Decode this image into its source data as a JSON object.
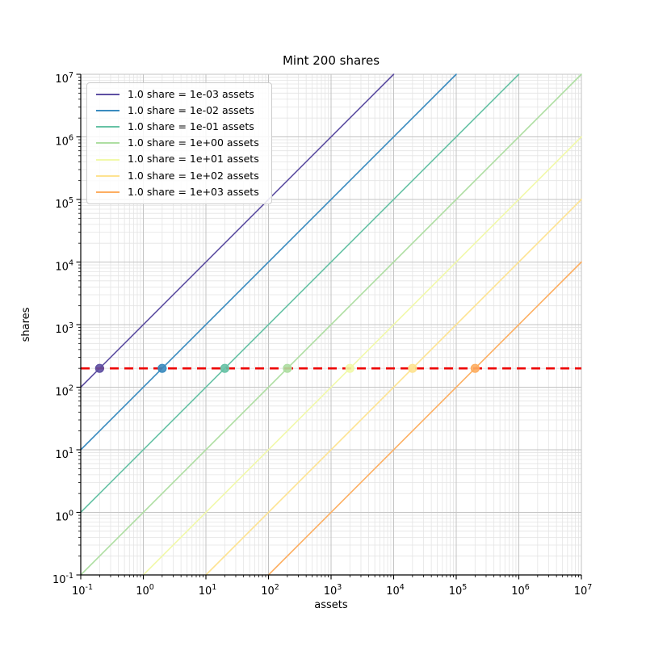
{
  "chart_data": {
    "type": "line",
    "title": "Mint 200 shares",
    "xlabel": "assets",
    "ylabel": "shares",
    "xscale": "log",
    "yscale": "log",
    "xlim": [
      0.1,
      10000000
    ],
    "ylim": [
      0.1,
      10000000
    ],
    "x_tick_exponents": [
      -1,
      0,
      1,
      2,
      3,
      4,
      5,
      6,
      7
    ],
    "y_tick_exponents": [
      -1,
      0,
      1,
      2,
      3,
      4,
      5,
      6,
      7
    ],
    "grid": "both",
    "legend_position": "upper left",
    "series": [
      {
        "label": "1.0 share = 1e-03 assets",
        "rate": 0.001,
        "color": "#5e4fa2",
        "marker_at": {
          "x": 0.2,
          "y": 200
        }
      },
      {
        "label": "1.0 share = 1e-02 assets",
        "rate": 0.01,
        "color": "#3a8bbf",
        "marker_at": {
          "x": 2,
          "y": 200
        }
      },
      {
        "label": "1.0 share = 1e-01 assets",
        "rate": 0.1,
        "color": "#66c2a5",
        "marker_at": {
          "x": 20,
          "y": 200
        }
      },
      {
        "label": "1.0 share = 1e+00 assets",
        "rate": 1,
        "color": "#aedea2",
        "marker_at": {
          "x": 200,
          "y": 200
        }
      },
      {
        "label": "1.0 share = 1e+01 assets",
        "rate": 10,
        "color": "#f1f9a9",
        "marker_at": {
          "x": 2000,
          "y": 200
        }
      },
      {
        "label": "1.0 share = 1e+02 assets",
        "rate": 100,
        "color": "#fee391",
        "marker_at": {
          "x": 20000,
          "y": 200
        }
      },
      {
        "label": "1.0 share = 1e+03 assets",
        "rate": 1000,
        "color": "#fdae61",
        "marker_at": {
          "x": 200000,
          "y": 200
        }
      }
    ],
    "reference_line": {
      "y": 200,
      "color": "#ee0000",
      "style": "dashed"
    },
    "colors": {
      "major_grid": "#c3c3c3",
      "minor_grid": "#e4e4e4",
      "spine": "#000000",
      "text": "#000000"
    }
  }
}
